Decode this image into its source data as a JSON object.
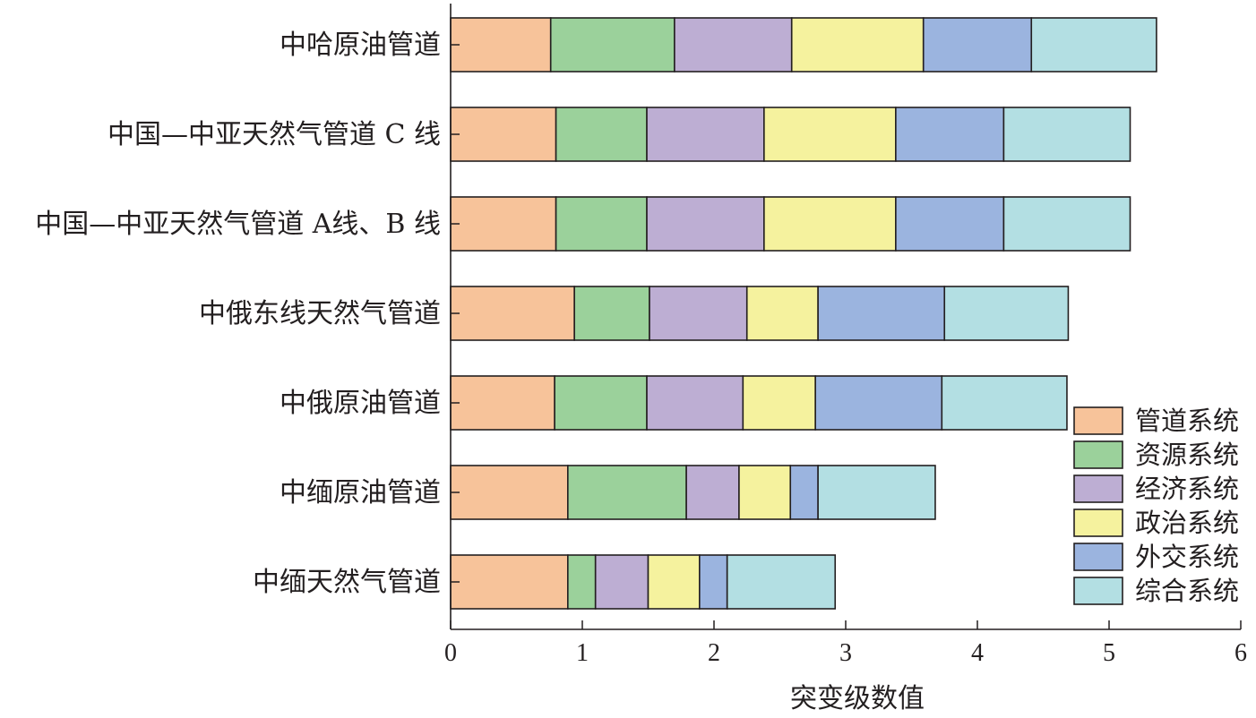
{
  "chart_data": {
    "type": "bar",
    "orientation": "horizontal",
    "stacked": true,
    "title": "",
    "xlabel": "突变级数值",
    "ylabel": "",
    "xlim": [
      0,
      6
    ],
    "xticks": [
      "0",
      "1",
      "2",
      "3",
      "4",
      "5",
      "6"
    ],
    "grid": false,
    "legend_position": "bottom-right",
    "categories": [
      "中哈原油管道",
      "中国—中亚天然气管道 C 线",
      "中国—中亚天然气管道 A线、B 线",
      "中俄东线天然气管道",
      "中俄原油管道",
      "中缅原油管道",
      "中缅天然气管道"
    ],
    "series": [
      {
        "name": "管道系统",
        "color": "#f7c39a",
        "values": [
          0.76,
          0.8,
          0.8,
          0.94,
          0.79,
          0.89,
          0.89
        ]
      },
      {
        "name": "资源系统",
        "color": "#9bd19b",
        "values": [
          0.94,
          0.69,
          0.69,
          0.57,
          0.7,
          0.9,
          0.21
        ]
      },
      {
        "name": "经济系统",
        "color": "#bdaed3",
        "values": [
          0.89,
          0.89,
          0.89,
          0.74,
          0.73,
          0.4,
          0.4
        ]
      },
      {
        "name": "政治系统",
        "color": "#f5f29e",
        "values": [
          1.0,
          1.0,
          1.0,
          0.54,
          0.55,
          0.39,
          0.39
        ]
      },
      {
        "name": "外交系统",
        "color": "#9bb4df",
        "values": [
          0.82,
          0.82,
          0.82,
          0.96,
          0.96,
          0.21,
          0.21
        ]
      },
      {
        "name": "综合系统",
        "color": "#b3dfe3",
        "values": [
          0.95,
          0.96,
          0.96,
          0.94,
          0.95,
          0.89,
          0.82
        ]
      }
    ]
  }
}
